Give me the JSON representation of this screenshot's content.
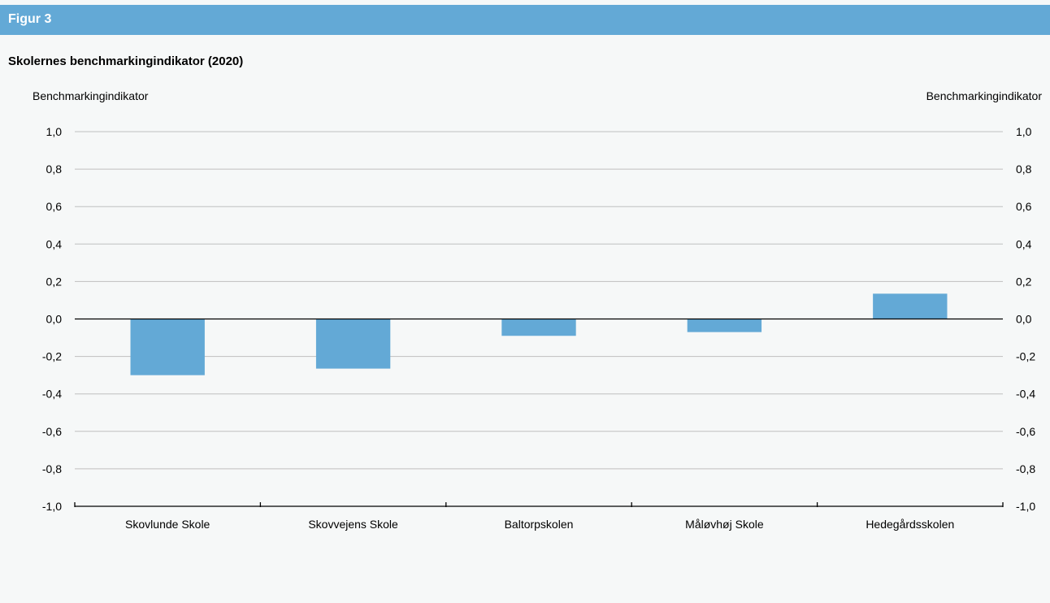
{
  "header": {
    "label": "Figur 3"
  },
  "chart_data": {
    "type": "bar",
    "title": "Skolernes benchmarkingindikator (2020)",
    "ylabel_left": "Benchmarkingindikator",
    "ylabel_right": "Benchmarkingindikator",
    "xlabel": "",
    "ylim": [
      -1.0,
      1.0
    ],
    "yticks": [
      1.0,
      0.8,
      0.6,
      0.4,
      0.2,
      0.0,
      -0.2,
      -0.4,
      -0.6,
      -0.8,
      -1.0
    ],
    "ytick_labels": [
      "1,0",
      "0,8",
      "0,6",
      "0,4",
      "0,2",
      "0,0",
      "-0,2",
      "-0,4",
      "-0,6",
      "-0,8",
      "-1,0"
    ],
    "categories": [
      "Skovlunde Skole",
      "Skovvejens Skole",
      "Baltorpskolen",
      "Måløvhøj Skole",
      "Hedegårdsskolen"
    ],
    "values": [
      -0.3,
      -0.265,
      -0.09,
      -0.07,
      0.135
    ],
    "grid": true,
    "legend": "none",
    "colors": {
      "bar": "#63a9d6",
      "grid": "#bfbfbf",
      "zero_line": "#000000"
    }
  }
}
